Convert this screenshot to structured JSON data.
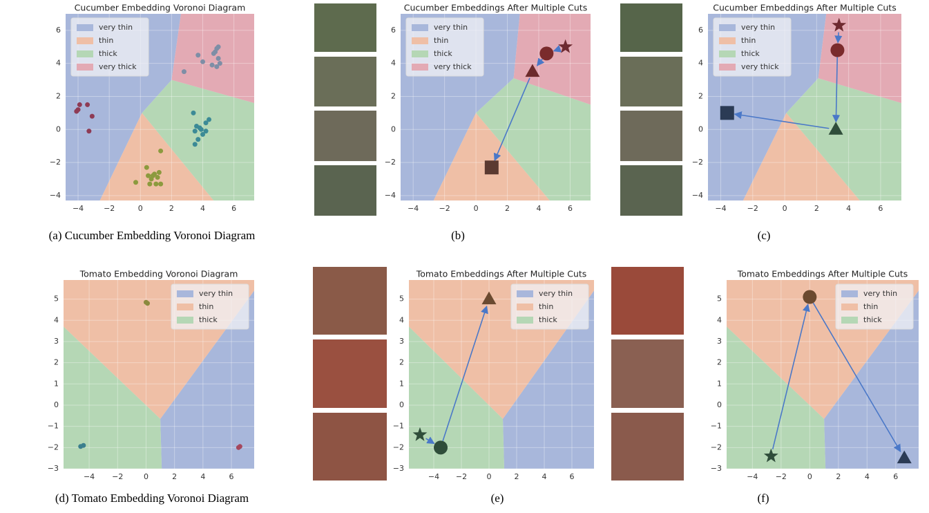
{
  "chart_data": [
    {
      "type": "scatter",
      "title": "Cucumber Embedding Voronoi Diagram",
      "caption": "(a) Cucumber Embedding Voronoi Diagram",
      "xlim": [
        -4.8,
        7.3
      ],
      "ylim": [
        -4.3,
        7
      ],
      "xticks": [
        {
          "value": -4,
          "label": "−4"
        },
        {
          "value": -2,
          "label": "−2"
        },
        0,
        2,
        4,
        6
      ],
      "yticks": [
        {
          "value": -4,
          "label": "−4"
        },
        {
          "value": -2,
          "label": "−2"
        },
        0,
        2,
        4,
        6
      ],
      "legend": "upper left",
      "series": [
        {
          "name": "very thin",
          "color": "#a8b7db",
          "region": [
            [
              -4.8,
              7
            ],
            [
              2.6,
              7
            ],
            [
              2.0,
              3.0
            ],
            [
              0.1,
              1.0
            ],
            [
              -2.6,
              -4.3
            ],
            [
              -4.8,
              -4.3
            ]
          ]
        },
        {
          "name": "thin",
          "color": "#efbfa6",
          "region": [
            [
              0.1,
              1.0
            ],
            [
              4.7,
              -4.3
            ],
            [
              -2.6,
              -4.3
            ]
          ]
        },
        {
          "name": "thick",
          "color": "#b5d7b5",
          "region": [
            [
              2.0,
              3.0
            ],
            [
              7.3,
              1.6
            ],
            [
              7.3,
              -4.3
            ],
            [
              4.7,
              -4.3
            ],
            [
              0.1,
              1.0
            ]
          ]
        },
        {
          "name": "very thick",
          "color": "#e3aab4",
          "region": [
            [
              2.6,
              7
            ],
            [
              7.3,
              7
            ],
            [
              7.3,
              1.6
            ],
            [
              2.0,
              3.0
            ]
          ]
        }
      ],
      "clusters": [
        {
          "color": "#8e3b55",
          "x": [
            -4.1,
            -4.0,
            -3.9,
            -3.4,
            -3.1,
            -3.3
          ],
          "y": [
            1.1,
            1.2,
            1.5,
            1.5,
            0.8,
            -0.1
          ]
        },
        {
          "color": "#8c9a3e",
          "x": [
            -0.3,
            0.4,
            0.5,
            0.7,
            0.9,
            1.0,
            1.1,
            1.3,
            0.6,
            1.2,
            0.8,
            1.3
          ],
          "y": [
            -3.2,
            -2.3,
            -2.8,
            -3.0,
            -2.7,
            -3.3,
            -2.9,
            -1.3,
            -3.3,
            -2.6,
            -2.8,
            -3.3
          ]
        },
        {
          "color": "#3c8a96",
          "x": [
            3.4,
            3.5,
            3.6,
            3.8,
            4.0,
            4.2,
            4.4,
            3.7,
            4.2,
            3.5,
            3.9
          ],
          "y": [
            1.0,
            -0.1,
            0.2,
            0.1,
            -0.3,
            0.4,
            0.6,
            -0.6,
            -0.1,
            -0.9,
            0.0
          ]
        },
        {
          "color": "#7e8ea6",
          "x": [
            2.8,
            3.7,
            4.0,
            4.6,
            4.8,
            4.9,
            5.0,
            5.1,
            4.9,
            5.0,
            4.7
          ],
          "y": [
            3.5,
            4.5,
            4.1,
            3.9,
            4.7,
            4.9,
            5.0,
            4.0,
            3.8,
            4.3,
            4.6
          ]
        }
      ]
    },
    {
      "type": "trajectory",
      "title": "Cucumber Embeddings After Multiple Cuts",
      "caption": "(b)",
      "xlim": [
        -4.8,
        7.3
      ],
      "ylim": [
        -4.3,
        7
      ],
      "xticks": [
        {
          "value": -4,
          "label": "−4"
        },
        {
          "value": -2,
          "label": "−2"
        },
        0,
        2,
        4,
        6
      ],
      "yticks": [
        {
          "value": -4,
          "label": "−4"
        },
        {
          "value": -2,
          "label": "−2"
        },
        0,
        2,
        4,
        6
      ],
      "legend": "upper left",
      "series": [
        {
          "name": "very thin",
          "color": "#a8b7db",
          "region": [
            [
              -4.8,
              7
            ],
            [
              2.8,
              7
            ],
            [
              2.4,
              3.1
            ],
            [
              0.0,
              1.0
            ],
            [
              -2.7,
              -4.3
            ],
            [
              -4.8,
              -4.3
            ]
          ]
        },
        {
          "name": "thin",
          "color": "#efbfa6",
          "region": [
            [
              0.0,
              1.0
            ],
            [
              4.7,
              -4.3
            ],
            [
              -2.7,
              -4.3
            ]
          ]
        },
        {
          "name": "thick",
          "color": "#b5d7b5",
          "region": [
            [
              2.4,
              3.1
            ],
            [
              7.3,
              1.5
            ],
            [
              7.3,
              -4.3
            ],
            [
              4.7,
              -4.3
            ],
            [
              0.0,
              1.0
            ]
          ]
        },
        {
          "name": "very thick",
          "color": "#e3aab4",
          "region": [
            [
              2.8,
              7
            ],
            [
              7.3,
              7
            ],
            [
              7.3,
              1.5
            ],
            [
              2.4,
              3.1
            ]
          ]
        }
      ],
      "points": [
        {
          "x": 5.7,
          "y": 5.0,
          "marker": "star",
          "color": "#6e2a30"
        },
        {
          "x": 4.5,
          "y": 4.6,
          "marker": "circle",
          "color": "#7a2b2c"
        },
        {
          "x": 3.6,
          "y": 3.5,
          "marker": "triangle",
          "color": "#6c2b2b"
        },
        {
          "x": 1.0,
          "y": -2.3,
          "marker": "square",
          "color": "#5b3a31"
        }
      ]
    },
    {
      "type": "trajectory",
      "title": "Cucumber Embeddings After Multiple Cuts",
      "caption": "(c)",
      "xlim": [
        -4.8,
        7.3
      ],
      "ylim": [
        -4.3,
        7
      ],
      "xticks": [
        {
          "value": -4,
          "label": "−4"
        },
        {
          "value": -2,
          "label": "−2"
        },
        0,
        2,
        4,
        6
      ],
      "yticks": [
        {
          "value": -4,
          "label": "−4"
        },
        {
          "value": -2,
          "label": "−2"
        },
        0,
        2,
        4,
        6
      ],
      "legend": "upper left",
      "series": [
        {
          "name": "very thin",
          "color": "#a8b7db",
          "region": [
            [
              -4.8,
              7
            ],
            [
              2.6,
              7
            ],
            [
              2.1,
              3.1
            ],
            [
              0.1,
              1.0
            ],
            [
              -2.6,
              -4.3
            ],
            [
              -4.8,
              -4.3
            ]
          ]
        },
        {
          "name": "thin",
          "color": "#efbfa6",
          "region": [
            [
              0.1,
              1.0
            ],
            [
              4.7,
              -4.3
            ],
            [
              -2.6,
              -4.3
            ]
          ]
        },
        {
          "name": "thick",
          "color": "#b5d7b5",
          "region": [
            [
              2.1,
              3.1
            ],
            [
              7.3,
              1.6
            ],
            [
              7.3,
              -4.3
            ],
            [
              4.7,
              -4.3
            ],
            [
              0.1,
              1.0
            ]
          ]
        },
        {
          "name": "very thick",
          "color": "#e3aab4",
          "region": [
            [
              2.6,
              7
            ],
            [
              7.3,
              7
            ],
            [
              7.3,
              1.6
            ],
            [
              2.1,
              3.1
            ]
          ]
        }
      ],
      "points": [
        {
          "x": 3.4,
          "y": 6.3,
          "marker": "star",
          "color": "#6e2a30"
        },
        {
          "x": 3.3,
          "y": 4.8,
          "marker": "circle",
          "color": "#7a2b2c"
        },
        {
          "x": 3.2,
          "y": 0.0,
          "marker": "triangle",
          "color": "#2f4d3a"
        },
        {
          "x": -3.6,
          "y": 1.0,
          "marker": "square",
          "color": "#2b3b55"
        }
      ]
    },
    {
      "type": "scatter",
      "title": "Tomato Embedding Voronoi Diagram",
      "caption": "(d) Tomato Embedding Voronoi Diagram",
      "xlim": [
        -5.8,
        7.6
      ],
      "ylim": [
        -3,
        5.9
      ],
      "xticks": [
        {
          "value": -4,
          "label": "−4"
        },
        {
          "value": -2,
          "label": "−2"
        },
        0,
        2,
        4,
        6
      ],
      "yticks": [
        {
          "value": -3,
          "label": "−3"
        },
        {
          "value": -2,
          "label": "−2"
        },
        {
          "value": -1,
          "label": "−1"
        },
        0,
        1,
        2,
        3,
        4,
        5
      ],
      "legend": "upper right",
      "series": [
        {
          "name": "very thin",
          "color": "#a8b7db",
          "region": [
            [
              1.0,
              -0.65
            ],
            [
              7.6,
              5.4
            ],
            [
              7.6,
              -3
            ],
            [
              1.1,
              -3
            ]
          ]
        },
        {
          "name": "thin",
          "color": "#efbfa6",
          "region": [
            [
              -5.8,
              5.9
            ],
            [
              7.6,
              5.9
            ],
            [
              7.6,
              5.4
            ],
            [
              1.0,
              -0.65
            ],
            [
              -5.8,
              3.7
            ]
          ]
        },
        {
          "name": "thick",
          "color": "#b5d7b5",
          "region": [
            [
              -5.8,
              3.7
            ],
            [
              1.0,
              -0.65
            ],
            [
              1.1,
              -3
            ],
            [
              -5.8,
              -3
            ]
          ]
        }
      ],
      "clusters": [
        {
          "color": "#8c8a3e",
          "x": [
            0.0,
            0.1
          ],
          "y": [
            4.85,
            4.8
          ]
        },
        {
          "color": "#3c7f8e",
          "x": [
            -4.6,
            -4.4
          ],
          "y": [
            -1.95,
            -1.9
          ]
        },
        {
          "color": "#a5475d",
          "x": [
            6.5,
            6.6
          ],
          "y": [
            -2.0,
            -1.95
          ]
        }
      ]
    },
    {
      "type": "trajectory",
      "title": "Tomato Embeddings After Multiple Cuts",
      "caption": "(e)",
      "xlim": [
        -5.8,
        7.6
      ],
      "ylim": [
        -3,
        5.9
      ],
      "xticks": [
        {
          "value": -4,
          "label": "−4"
        },
        {
          "value": -2,
          "label": "−2"
        },
        0,
        2,
        4,
        6
      ],
      "yticks": [
        {
          "value": -3,
          "label": "−3"
        },
        {
          "value": -2,
          "label": "−2"
        },
        {
          "value": -1,
          "label": "−1"
        },
        0,
        1,
        2,
        3,
        4,
        5
      ],
      "legend": "upper right",
      "series": [
        {
          "name": "very thin",
          "color": "#a8b7db",
          "region": [
            [
              1.0,
              -0.65
            ],
            [
              7.6,
              5.4
            ],
            [
              7.6,
              -3
            ],
            [
              1.1,
              -3
            ]
          ]
        },
        {
          "name": "thin",
          "color": "#efbfa6",
          "region": [
            [
              -5.8,
              5.9
            ],
            [
              7.6,
              5.9
            ],
            [
              7.6,
              5.4
            ],
            [
              1.0,
              -0.65
            ],
            [
              -5.8,
              3.7
            ]
          ]
        },
        {
          "name": "thick",
          "color": "#b5d7b5",
          "region": [
            [
              -5.8,
              3.7
            ],
            [
              1.0,
              -0.65
            ],
            [
              1.1,
              -3
            ],
            [
              -5.8,
              -3
            ]
          ]
        }
      ],
      "points": [
        {
          "x": -5.0,
          "y": -1.4,
          "marker": "star",
          "color": "#2f4d3a"
        },
        {
          "x": -3.5,
          "y": -2.0,
          "marker": "circle",
          "color": "#2f4d3a"
        },
        {
          "x": 0.0,
          "y": 5.0,
          "marker": "triangle",
          "color": "#6b4a30"
        }
      ]
    },
    {
      "type": "trajectory",
      "title": "Tomato Embeddings After Multiple Cuts",
      "caption": "(f)",
      "xlim": [
        -5.8,
        7.6
      ],
      "ylim": [
        -3,
        5.9
      ],
      "xticks": [
        {
          "value": -4,
          "label": "−4"
        },
        {
          "value": -2,
          "label": "−2"
        },
        0,
        2,
        4,
        6
      ],
      "yticks": [
        {
          "value": -3,
          "label": "−3"
        },
        {
          "value": -2,
          "label": "−2"
        },
        {
          "value": -1,
          "label": "−1"
        },
        0,
        1,
        2,
        3,
        4,
        5
      ],
      "legend": "upper right",
      "series": [
        {
          "name": "very thin",
          "color": "#a8b7db",
          "region": [
            [
              1.0,
              -0.65
            ],
            [
              7.6,
              5.4
            ],
            [
              7.6,
              -3
            ],
            [
              1.1,
              -3
            ]
          ]
        },
        {
          "name": "thin",
          "color": "#efbfa6",
          "region": [
            [
              -5.8,
              5.9
            ],
            [
              7.6,
              5.9
            ],
            [
              7.6,
              5.4
            ],
            [
              1.0,
              -0.65
            ],
            [
              -5.8,
              3.7
            ]
          ]
        },
        {
          "name": "thick",
          "color": "#b5d7b5",
          "region": [
            [
              -5.8,
              3.7
            ],
            [
              1.0,
              -0.65
            ],
            [
              1.1,
              -3
            ],
            [
              -5.8,
              -3
            ]
          ]
        }
      ],
      "points": [
        {
          "x": -2.7,
          "y": -2.4,
          "marker": "star",
          "color": "#2f4d3a"
        },
        {
          "x": 0.0,
          "y": 5.1,
          "marker": "circle",
          "color": "#6b4a30"
        },
        {
          "x": 6.6,
          "y": -2.5,
          "marker": "triangle",
          "color": "#2b3b55"
        }
      ]
    }
  ]
}
